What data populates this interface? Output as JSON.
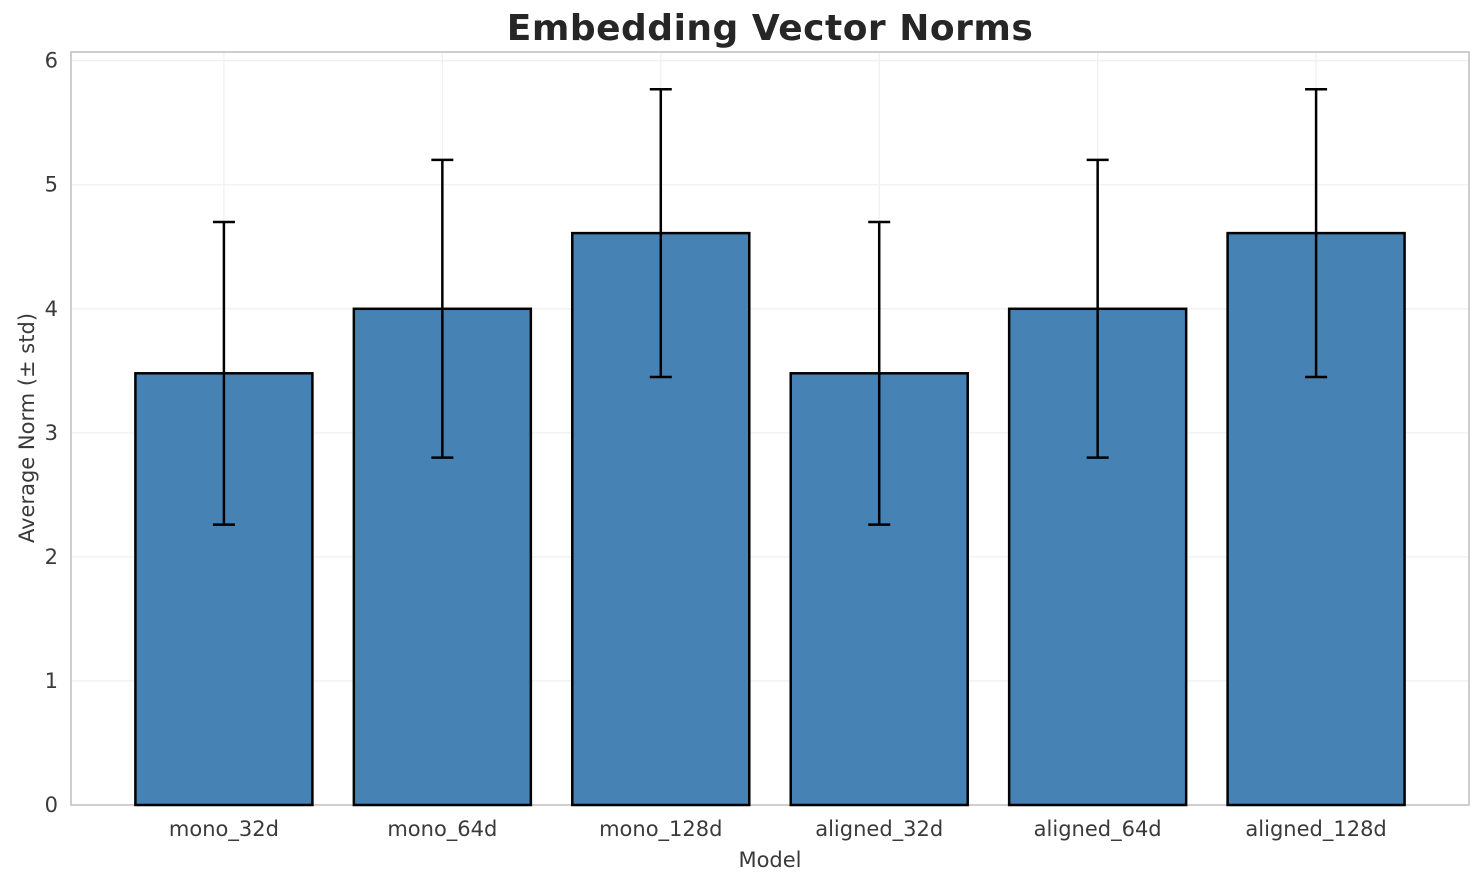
{
  "chart_data": {
    "type": "bar",
    "title": "Embedding Vector Norms",
    "xlabel": "Model",
    "ylabel": "Average Norm (± std)",
    "categories": [
      "mono_32d",
      "mono_64d",
      "mono_128d",
      "aligned_32d",
      "aligned_64d",
      "aligned_128d"
    ],
    "values": [
      3.48,
      4.0,
      4.61,
      3.48,
      4.0,
      4.61
    ],
    "errors": [
      1.22,
      1.2,
      1.16,
      1.22,
      1.2,
      1.16
    ],
    "ylim": [
      0,
      6.07
    ],
    "yticks": [
      0,
      1,
      2,
      3,
      4,
      5,
      6
    ],
    "xlim": [
      -0.7,
      5.7
    ],
    "grid": true,
    "legend": "none",
    "colors": {
      "bar_fill": "#4682B4",
      "bar_edge": "#000000",
      "error_bar": "#000000",
      "grid": "#F0F0F0",
      "spine": "#C9C9C9",
      "title_text": "#262626",
      "label_text": "#3A3A3A",
      "background": "#FFFFFF"
    }
  }
}
